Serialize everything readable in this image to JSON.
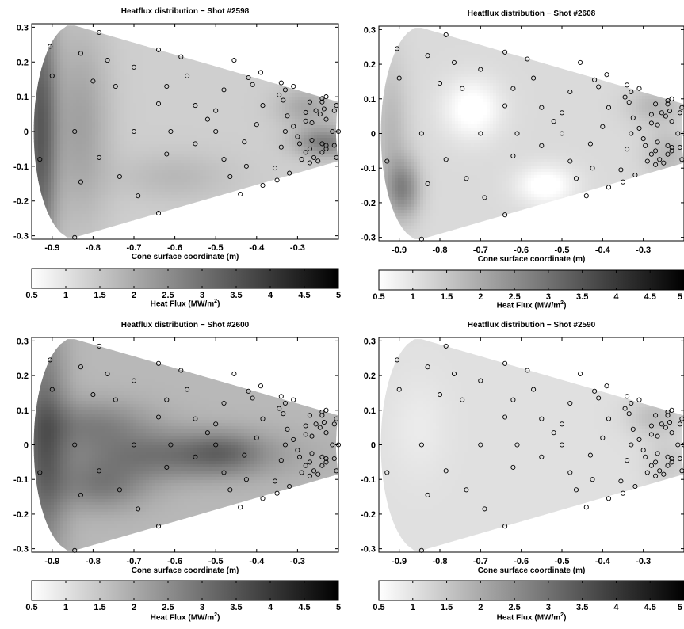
{
  "panels": [
    {
      "title": "Heatflux distribution − Shot #2598",
      "xlabel": "Cone surface coordinate (m)",
      "colorbar_label": "Heat Flux (MW/m",
      "colorbar_label_sup": "2",
      "colorbar_label_end": ")"
    },
    {
      "title": "Heatflux distribution − Shot #2608",
      "xlabel": "Cone surface coordinate (m)",
      "colorbar_label": "Heat Flux (MW/m",
      "colorbar_label_sup": "2",
      "colorbar_label_end": ")"
    },
    {
      "title": "Heatflux distribution − Shot #2600",
      "xlabel": "Cone surface coordinate (m)",
      "colorbar_label": "Heat Flux (MW/m",
      "colorbar_label_sup": "2",
      "colorbar_label_end": ")"
    },
    {
      "title": "Heatflux distribution − Shot #2590",
      "xlabel": "Cone surface coordinate (m)",
      "colorbar_label": "Heat Flux (MW/m",
      "colorbar_label_sup": "2",
      "colorbar_label_end": ")"
    }
  ],
  "chart_data": [
    {
      "type": "heatmap",
      "title": "Heatflux distribution − Shot #2598",
      "xlabel": "Cone surface coordinate (m)",
      "xlim": [
        -0.95,
        -0.2
      ],
      "ylim": [
        -0.31,
        0.31
      ],
      "xticks": [
        "-0.9",
        "-0.8",
        "-0.7",
        "-0.6",
        "-0.5",
        "-0.4",
        "-0.3"
      ],
      "yticks": [
        "-0.3",
        "-0.2",
        "-0.1",
        "0",
        "0.1",
        "0.2",
        "0.3"
      ],
      "colorbar": {
        "range": [
          0.5,
          5
        ],
        "ticks": [
          "0.5",
          "1",
          "1.5",
          "2",
          "2.5",
          "3",
          "3.5",
          "4",
          "4.5",
          "5"
        ],
        "label": "Heat Flux (MW/m2)",
        "colormap": "white-to-black"
      },
      "hotspots": [
        {
          "x": -0.93,
          "y": 0.0,
          "value": 2.0,
          "sx": 0.03,
          "sy": 0.3
        },
        {
          "x": -0.83,
          "y": 0.02,
          "value": 0.8,
          "sx": 0.05,
          "sy": 0.2
        },
        {
          "x": -0.235,
          "y": -0.03,
          "value": 1.4,
          "sx": 0.05,
          "sy": 0.03
        },
        {
          "x": -0.28,
          "y": 0.07,
          "value": 0.7,
          "sx": 0.05,
          "sy": 0.04
        },
        {
          "x": -0.6,
          "y": -0.13,
          "value": 0.4,
          "sx": 0.1,
          "sy": 0.05
        }
      ],
      "base_value": 1.35
    },
    {
      "type": "heatmap",
      "title": "Heatflux distribution − Shot #2608",
      "xlabel": "Cone surface coordinate (m)",
      "xlim": [
        -0.95,
        -0.2
      ],
      "ylim": [
        -0.31,
        0.31
      ],
      "xticks": [
        "-0.9",
        "-0.8",
        "-0.7",
        "-0.6",
        "-0.5",
        "-0.4",
        "-0.3"
      ],
      "yticks": [
        "-0.3",
        "-0.2",
        "-0.1",
        "0",
        "0.1",
        "0.2",
        "0.3"
      ],
      "colorbar": {
        "range": [
          0.5,
          5
        ],
        "ticks": [
          "0.5",
          "1",
          "1.5",
          "2",
          "2.5",
          "3",
          "3.5",
          "4",
          "4.5",
          "5"
        ],
        "label": "Heat Flux (MW/m2)",
        "colormap": "white-to-black"
      },
      "hotspots": [
        {
          "x": -0.89,
          "y": -0.16,
          "value": 1.4,
          "sx": 0.03,
          "sy": 0.06
        },
        {
          "x": -0.92,
          "y": 0.0,
          "value": 0.6,
          "sx": 0.03,
          "sy": 0.15
        },
        {
          "x": -0.27,
          "y": 0.08,
          "value": 0.6,
          "sx": 0.05,
          "sy": 0.04
        },
        {
          "x": -0.24,
          "y": -0.06,
          "value": 0.6,
          "sx": 0.04,
          "sy": 0.05
        },
        {
          "x": -0.72,
          "y": 0.07,
          "value": -0.8,
          "sx": 0.05,
          "sy": 0.06
        },
        {
          "x": -0.54,
          "y": -0.15,
          "value": -0.8,
          "sx": 0.05,
          "sy": 0.04
        }
      ],
      "base_value": 1.15
    },
    {
      "type": "heatmap",
      "title": "Heatflux distribution − Shot #2600",
      "xlabel": "Cone surface coordinate (m)",
      "xlim": [
        -0.95,
        -0.2
      ],
      "ylim": [
        -0.31,
        0.31
      ],
      "xticks": [
        "-0.9",
        "-0.8",
        "-0.7",
        "-0.6",
        "-0.5",
        "-0.4",
        "-0.3"
      ],
      "yticks": [
        "-0.3",
        "-0.2",
        "-0.1",
        "0",
        "0.1",
        "0.2",
        "0.3"
      ],
      "colorbar": {
        "range": [
          0.5,
          5
        ],
        "ticks": [
          "0.5",
          "1",
          "1.5",
          "2",
          "2.5",
          "3",
          "3.5",
          "4",
          "4.5",
          "5"
        ],
        "label": "Heat Flux (MW/m2)",
        "colormap": "white-to-black"
      },
      "hotspots": [
        {
          "x": -0.92,
          "y": 0.0,
          "value": 1.4,
          "sx": 0.04,
          "sy": 0.25
        },
        {
          "x": -0.6,
          "y": -0.03,
          "value": 1.2,
          "sx": 0.18,
          "sy": 0.05
        },
        {
          "x": -0.8,
          "y": 0.06,
          "value": 0.9,
          "sx": 0.1,
          "sy": 0.05
        },
        {
          "x": -0.78,
          "y": -0.12,
          "value": 1.0,
          "sx": 0.08,
          "sy": 0.05
        },
        {
          "x": -0.48,
          "y": -0.02,
          "value": 0.6,
          "sx": 0.06,
          "sy": 0.04
        }
      ],
      "base_value": 1.75
    },
    {
      "type": "heatmap",
      "title": "Heatflux distribution − Shot #2590",
      "xlabel": "Cone surface coordinate (m)",
      "xlim": [
        -0.95,
        -0.2
      ],
      "ylim": [
        -0.31,
        0.31
      ],
      "xticks": [
        "-0.9",
        "-0.8",
        "-0.7",
        "-0.6",
        "-0.5",
        "-0.4",
        "-0.3"
      ],
      "yticks": [
        "-0.3",
        "-0.2",
        "-0.1",
        "0",
        "0.1",
        "0.2",
        "0.3"
      ],
      "colorbar": {
        "range": [
          0.5,
          5
        ],
        "ticks": [
          "0.5",
          "1",
          "1.5",
          "2",
          "2.5",
          "3",
          "3.5",
          "4",
          "4.5",
          "5"
        ],
        "label": "Heat Flux (MW/m2)",
        "colormap": "white-to-black"
      },
      "hotspots": [
        {
          "x": -0.27,
          "y": 0.08,
          "value": 0.6,
          "sx": 0.05,
          "sy": 0.04
        },
        {
          "x": -0.24,
          "y": -0.05,
          "value": 0.4,
          "sx": 0.04,
          "sy": 0.05
        },
        {
          "x": -0.85,
          "y": 0.05,
          "value": -0.2,
          "sx": 0.05,
          "sy": 0.1
        }
      ],
      "base_value": 1.05
    }
  ],
  "sensor_points": {
    "x": [
      -0.845,
      -0.93,
      -0.785,
      -0.83,
      -0.765,
      -0.745,
      -0.8,
      -0.9,
      -0.845,
      -0.905,
      -0.785,
      -0.7,
      -0.64,
      -0.64,
      -0.7,
      -0.83,
      -0.735,
      -0.69,
      -0.64,
      -0.585,
      -0.57,
      -0.62,
      -0.61,
      -0.55,
      -0.52,
      -0.55,
      -0.62,
      -0.5,
      -0.48,
      -0.465,
      -0.44,
      -0.455,
      -0.48,
      -0.5,
      -0.43,
      -0.4,
      -0.385,
      -0.39,
      -0.41,
      -0.425,
      -0.355,
      -0.35,
      -0.33,
      -0.325,
      -0.34,
      -0.345,
      -0.28,
      -0.28,
      -0.27,
      -0.265,
      -0.27,
      -0.27,
      -0.265,
      -0.235,
      -0.23,
      -0.23,
      -0.21,
      -0.205,
      -0.215,
      -0.23,
      -0.24,
      -0.255,
      -0.24,
      -0.25,
      -0.28,
      -0.295,
      -0.31,
      -0.32,
      -0.33,
      -0.34,
      -0.31,
      -0.3,
      -0.24,
      -0.24,
      -0.26,
      -0.205,
      -0.2,
      -0.21,
      -0.245,
      -0.23,
      -0.29,
      -0.335,
      -0.385,
      -0.42
    ],
    "y": [
      -0.305,
      -0.08,
      0.285,
      0.225,
      0.205,
      0.13,
      0.145,
      0.16,
      0.0,
      0.245,
      -0.075,
      0.185,
      0.235,
      0.08,
      0.0,
      -0.145,
      -0.13,
      -0.185,
      -0.235,
      0.215,
      0.16,
      0.13,
      0.0,
      0.075,
      0.035,
      -0.035,
      -0.065,
      0.0,
      -0.08,
      -0.13,
      -0.18,
      0.205,
      0.12,
      0.06,
      -0.03,
      0.02,
      0.075,
      0.17,
      0.135,
      -0.1,
      -0.105,
      -0.14,
      0.0,
      0.045,
      0.14,
      0.105,
      0.055,
      -0.06,
      0.085,
      -0.025,
      -0.09,
      -0.05,
      0.025,
      0.065,
      0.035,
      -0.04,
      0.06,
      -0.075,
      0.0,
      0.1,
      0.095,
      0.06,
      -0.06,
      -0.085,
      0.03,
      -0.035,
      0.13,
      -0.12,
      0.12,
      -0.045,
      0.015,
      -0.015,
      0.085,
      -0.035,
      -0.075,
      0.075,
      0.0,
      -0.04,
      0.05,
      -0.05,
      -0.08,
      0.09,
      -0.155,
      0.155
    ]
  }
}
